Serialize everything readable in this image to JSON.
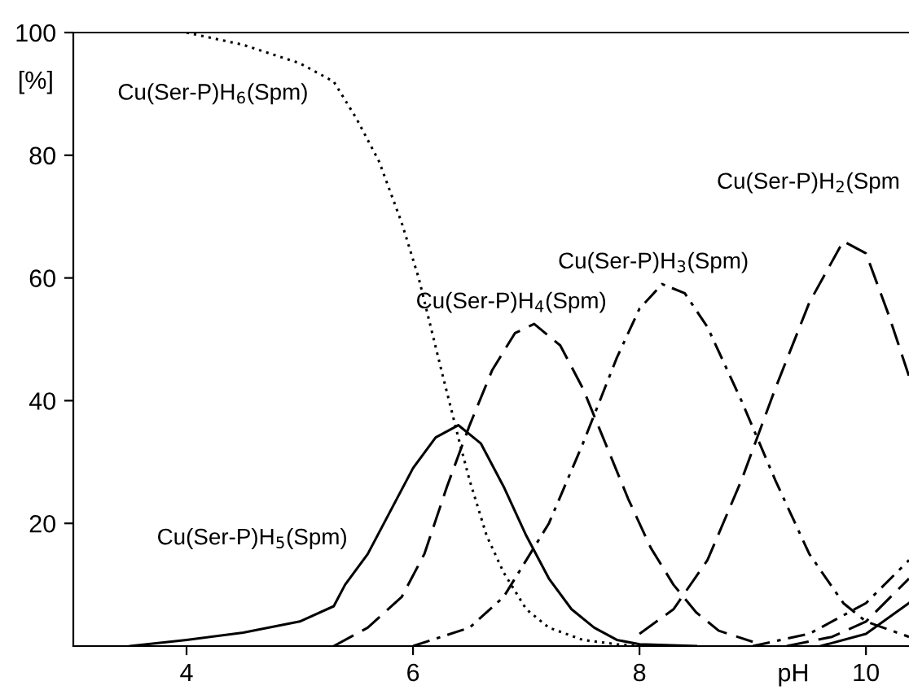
{
  "chart_data": {
    "type": "line",
    "xlabel": "pH",
    "ylabel": "[%]",
    "xlim": [
      3,
      10.38
    ],
    "ylim": [
      0,
      100
    ],
    "xticks": [
      4,
      6,
      8,
      10
    ],
    "yticks": [
      20,
      40,
      60,
      80,
      100
    ],
    "grid": false,
    "legend": false,
    "marker": "none",
    "series": [
      {
        "color": "#000000",
        "line_style": "dotted",
        "x": [
          4.0,
          4.5,
          5.0,
          5.3,
          5.5,
          5.7,
          5.9,
          6.05,
          6.25,
          6.4,
          6.5,
          6.65,
          6.8,
          7.0,
          7.2,
          7.5,
          7.8,
          8.0
        ],
        "values": [
          100,
          98,
          95,
          92,
          86,
          79,
          69,
          60,
          45,
          34,
          27,
          18,
          12,
          6,
          3,
          1,
          0.3,
          0
        ]
      },
      {
        "color": "#000000",
        "line_style": "solid",
        "x": [
          3.5,
          4.0,
          4.5,
          5.0,
          5.3,
          5.4,
          5.6,
          5.8,
          6.0,
          6.2,
          6.4,
          6.6,
          6.8,
          7.0,
          7.2,
          7.4,
          7.6,
          7.8,
          8.0,
          8.5
        ],
        "values": [
          0,
          1,
          2.2,
          4,
          6.5,
          10,
          15,
          22,
          29,
          34,
          36,
          33,
          26,
          18,
          11,
          6,
          3,
          1,
          0.3,
          0
        ]
      },
      {
        "color": "#000000",
        "line_style": "dashed",
        "x": [
          5.3,
          5.6,
          5.9,
          6.1,
          6.3,
          6.5,
          6.7,
          6.9,
          7.07,
          7.3,
          7.5,
          7.7,
          7.9,
          8.1,
          8.3,
          8.5,
          8.7,
          9.0
        ],
        "values": [
          0,
          3,
          8,
          15,
          26,
          36,
          45,
          51,
          52.5,
          49,
          42,
          33,
          24,
          16,
          10,
          5.5,
          2.5,
          0.7
        ]
      },
      {
        "color": "#000000",
        "line_style": "dashdot",
        "x": [
          6.0,
          6.5,
          6.8,
          7.2,
          7.5,
          7.8,
          8.0,
          8.2,
          8.4,
          8.6,
          8.9,
          9.2,
          9.5,
          9.8,
          10.0,
          10.38
        ],
        "values": [
          0,
          3,
          8,
          20,
          33,
          47,
          55,
          59,
          57.5,
          52,
          40,
          27,
          15,
          7,
          4,
          1.5
        ]
      },
      {
        "color": "#000000",
        "line_style": "dashed",
        "x": [
          8.0,
          8.3,
          8.6,
          8.9,
          9.2,
          9.5,
          9.8,
          10.0,
          10.2,
          10.38
        ],
        "values": [
          2,
          6,
          14,
          27,
          42,
          56,
          66,
          64,
          54,
          44
        ]
      },
      {
        "color": "#000000",
        "line_style": "dashdot",
        "x": [
          9.0,
          9.5,
          10.0,
          10.38
        ],
        "values": [
          0,
          2,
          7,
          14
        ]
      },
      {
        "color": "#000000",
        "line_style": "dashed",
        "x": [
          9.3,
          9.7,
          10.0,
          10.38
        ],
        "values": [
          0,
          1.5,
          4,
          11
        ]
      },
      {
        "color": "#000000",
        "line_style": "solid",
        "x": [
          9.6,
          10.0,
          10.38
        ],
        "values": [
          0,
          2,
          7
        ]
      }
    ],
    "annotations": [
      "Cu(Ser-P)H$_{6}$(Spm)",
      "Cu(Ser-P)H$_{5}$(Spm)",
      "Cu(Ser-P)H$_{4}$(Spm)",
      "Cu(Ser-P)H$_{3}$(Spm)",
      "Cu(Ser-P)H$_{2}$(Spm"
    ]
  }
}
